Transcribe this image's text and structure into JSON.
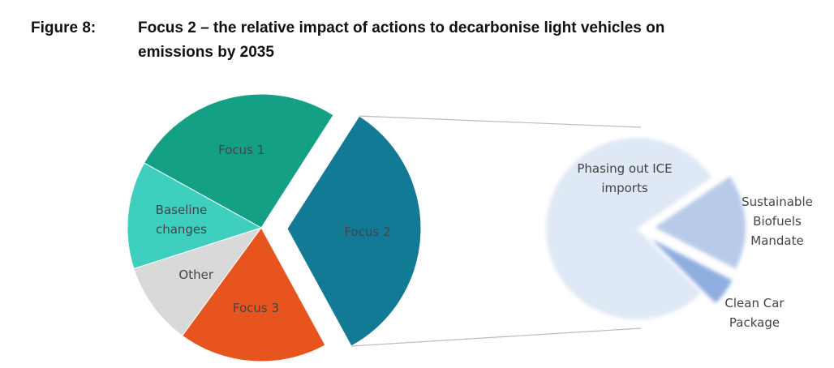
{
  "chart_data": {
    "type": "pie-of-pie",
    "figure_label": "Figure 8:",
    "title": "Focus 2 – the relative impact of actions to decarbonise light vehicles on emissions by 2035",
    "categories": [
      "Focus 1",
      "Focus 2",
      "Focus 3",
      "Other",
      "Baseline changes"
    ],
    "values": [
      26,
      33,
      18,
      10,
      13
    ],
    "colors": [
      "#14a085",
      "#137a96",
      "#e8541e",
      "#d9d9d9",
      "#3ecfbf"
    ],
    "secondary": {
      "categories": [
        "Phasing out ICE imports",
        "Sustainable Biofuels Mandate",
        "Clean Car Package"
      ],
      "values": [
        78,
        17,
        5
      ],
      "colors": [
        "#dfe8f5",
        "#b7cbe8",
        "#8eaee0"
      ]
    }
  }
}
